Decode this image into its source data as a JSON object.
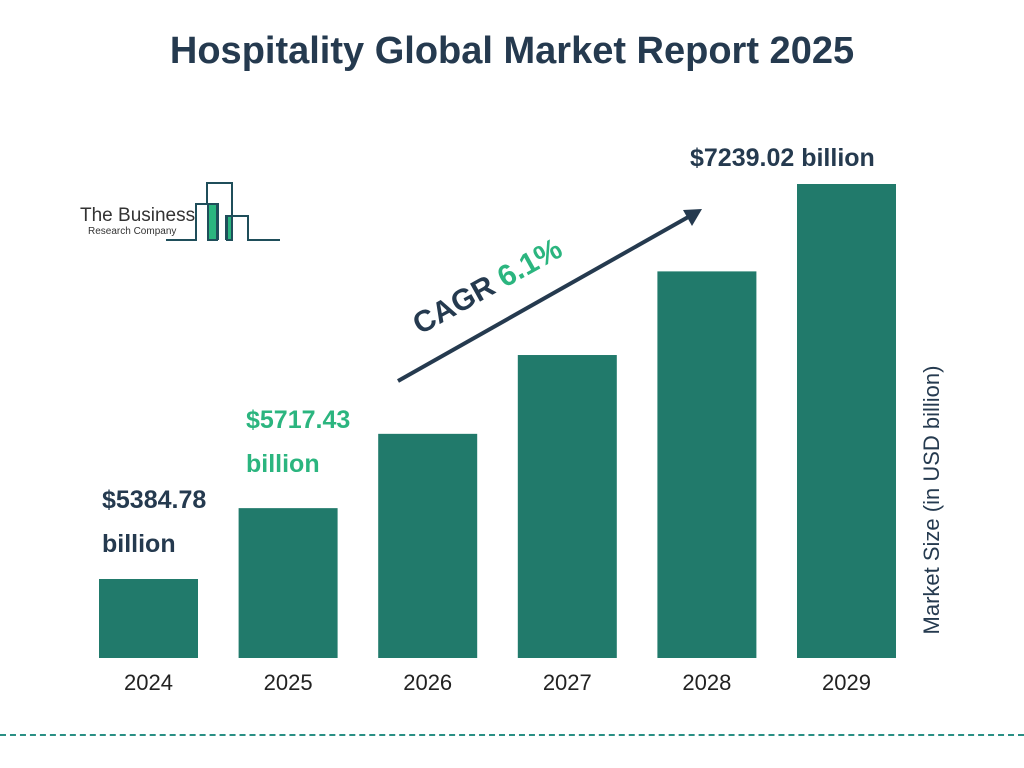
{
  "chart_data": {
    "type": "bar",
    "title": "Hospitality Global Market Report 2025",
    "categories": [
      "2024",
      "2025",
      "2026",
      "2027",
      "2028",
      "2029"
    ],
    "values": [
      5384.78,
      5717.43,
      6066.2,
      6436.2,
      6828.8,
      7239.02
    ],
    "ylabel": "Market Size (in USD billion)",
    "data_labels": {
      "2024": "$5384.78 billion",
      "2025": "$5717.43 billion",
      "2029": "$7239.02 billion"
    },
    "annotation": {
      "prefix": "CAGR",
      "value": "6.1%"
    },
    "grid": false
  },
  "labels": {
    "l2024a": "$5384.78",
    "l2024b": "billion",
    "l2025a": "$5717.43",
    "l2025b": "billion",
    "l2029": "$7239.02 billion"
  },
  "logo": {
    "line1": "The Business",
    "line2": "Research Company"
  },
  "colors": {
    "bar": "#217a6b",
    "title": "#253a4f",
    "accent": "#2bb57f"
  }
}
